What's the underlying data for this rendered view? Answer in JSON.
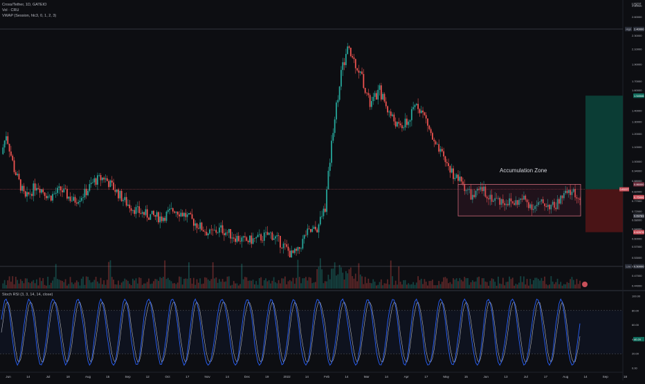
{
  "legend": {
    "symbol": "Cross/Tether, 1D, GATEIO",
    "vol": "Vol · CRU",
    "vwap": "VWAP (Session, hlc3, 0, 1, 2, 3)"
  },
  "currency": "USDT",
  "rsi_legend": "Stoch RSI (3, 3, 14, 14, close)",
  "annotation": "Accumulation Zone",
  "colors": {
    "up": "#26a69a",
    "down": "#ef5350",
    "rsi_k": "#2962ff",
    "rsi_d": "#e3e6ec",
    "zone_border": "#d06a7a",
    "long_target": "#0b3d35",
    "long_stop": "#4a1416",
    "background": "#0d0e12"
  },
  "chart_data": [
    {
      "type": "candlestick",
      "title": "Cross/Tether, 1D, GATEIO",
      "y_scale": "log",
      "ylim": [
        0.4,
        2.8
      ],
      "y_ticks": [
        "2.80000",
        "2.60000",
        "2.30000",
        "2.10000",
        "1.90000",
        "1.70000",
        "1.60000",
        "1.40000",
        "1.30000",
        "1.20000",
        "1.10000",
        "1.00000",
        "0.94000",
        "0.88000",
        "0.82000",
        "0.77000",
        "0.72000",
        "0.68000",
        "0.64000",
        "0.60000",
        "0.57000",
        "0.53000",
        "0.50000",
        "0.47000",
        "0.44000"
      ],
      "x_ticks": [
        "Jun",
        "14",
        "Jul",
        "18",
        "Aug",
        "15",
        "Sep",
        "12",
        "Oct",
        "17",
        "Nov",
        "14",
        "Dec",
        "19",
        "2022",
        "14",
        "Feb",
        "14",
        "Mar",
        "14",
        "Apr",
        "17",
        "May",
        "15",
        "Jun",
        "13",
        "Jul",
        "17",
        "Aug",
        "14",
        "Sep",
        "18"
      ],
      "price_labels": {
        "high_tag": "High",
        "high_value": "2.40000",
        "low_tag": "Low",
        "low_value": "0.50000",
        "target": "1.54546",
        "zone_top": "0.86000",
        "last": "0.75996",
        "entry": "0.83227",
        "zone_bottom": "0.69783",
        "stop": "0.62678"
      },
      "series_close_path": [
        [
          0,
          1.05
        ],
        [
          3,
          1.2
        ],
        [
          8,
          0.95
        ],
        [
          15,
          0.78
        ],
        [
          22,
          0.86
        ],
        [
          30,
          0.79
        ],
        [
          37,
          0.83
        ],
        [
          45,
          0.77
        ],
        [
          52,
          0.81
        ],
        [
          58,
          0.88
        ],
        [
          64,
          0.9
        ],
        [
          70,
          0.84
        ],
        [
          78,
          0.76
        ],
        [
          85,
          0.72
        ],
        [
          92,
          0.7
        ],
        [
          100,
          0.69
        ],
        [
          108,
          0.73
        ],
        [
          115,
          0.7
        ],
        [
          122,
          0.66
        ],
        [
          130,
          0.62
        ],
        [
          137,
          0.64
        ],
        [
          145,
          0.61
        ],
        [
          152,
          0.59
        ],
        [
          160,
          0.6
        ],
        [
          168,
          0.62
        ],
        [
          175,
          0.58
        ],
        [
          181,
          0.54
        ],
        [
          185,
          0.55
        ],
        [
          190,
          0.62
        ],
        [
          197,
          0.64
        ],
        [
          202,
          0.74
        ],
        [
          207,
          1.25
        ],
        [
          212,
          1.8
        ],
        [
          216,
          2.1
        ],
        [
          220,
          1.95
        ],
        [
          225,
          1.75
        ],
        [
          230,
          1.45
        ],
        [
          236,
          1.6
        ],
        [
          242,
          1.38
        ],
        [
          248,
          1.25
        ],
        [
          254,
          1.3
        ],
        [
          259,
          1.48
        ],
        [
          265,
          1.32
        ],
        [
          270,
          1.12
        ],
        [
          276,
          1.02
        ],
        [
          282,
          0.92
        ],
        [
          288,
          0.86
        ],
        [
          294,
          0.79
        ],
        [
          300,
          0.83
        ],
        [
          307,
          0.78
        ],
        [
          313,
          0.77
        ],
        [
          320,
          0.76
        ],
        [
          326,
          0.78
        ],
        [
          332,
          0.74
        ],
        [
          338,
          0.76
        ],
        [
          345,
          0.74
        ],
        [
          351,
          0.8
        ],
        [
          357,
          0.82
        ],
        [
          361,
          0.77
        ]
      ]
    },
    {
      "type": "line",
      "title": "Stoch RSI (3, 3, 14, 14, close)",
      "ylim": [
        0,
        100
      ],
      "y_ticks": [
        "100.00",
        "80.00",
        "60.00",
        "40.00",
        "20.00",
        "0.00"
      ],
      "current_value": "40.20"
    }
  ]
}
